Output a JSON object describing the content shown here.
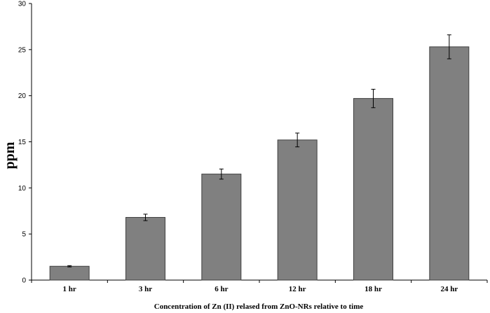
{
  "chart_data": {
    "type": "bar",
    "categories": [
      "1 hr",
      "3 hr",
      "6 hr",
      "12 hr",
      "18 hr",
      "24 hr"
    ],
    "values": [
      1.5,
      6.8,
      11.5,
      15.2,
      19.7,
      25.3
    ],
    "errors": [
      0.07,
      0.35,
      0.55,
      0.75,
      1.0,
      1.3
    ],
    "title": "",
    "xlabel": "Concentration  of  Zn (II) relased  from ZnO-NRs relative to time",
    "ylabel": "ppm",
    "ylim": [
      0,
      30
    ],
    "yticks": [
      0,
      5,
      10,
      15,
      20,
      25,
      30
    ],
    "grid": false,
    "legend": "none",
    "bar_color": "#808080",
    "bar_edge_color": "#404040"
  }
}
